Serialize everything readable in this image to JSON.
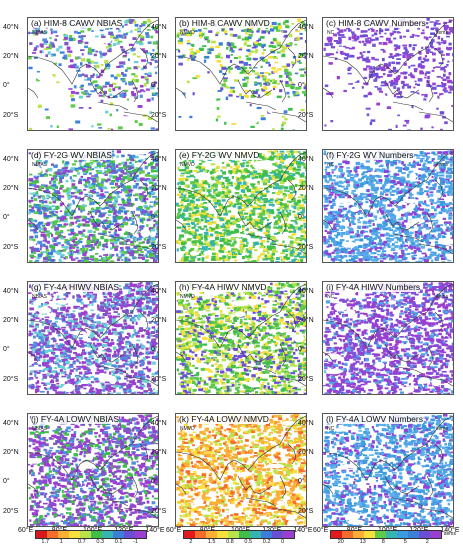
{
  "panels": [
    {
      "title": "(a) HIM-8 CAWV NBIAS",
      "label": "NBIAS"
    },
    {
      "title": "(b) HIM-8 CAWV NMVD",
      "label": "NMVD"
    },
    {
      "title": "(c) HIM-8 CAWV Numbers",
      "label": "NC",
      "unit": "items"
    },
    {
      "title": "(d) FY-2G WV NBIAS",
      "label": "NBIAS"
    },
    {
      "title": "(e) FY-2G WV NMVD",
      "label": "NMVD"
    },
    {
      "title": "(f) FY-2G WV Numbers",
      "label": "NC",
      "unit": "items"
    },
    {
      "title": "(g) FY-4A HIWV NBIAS",
      "label": "NBIAS"
    },
    {
      "title": "(h) FY-4A HIWV NMVD",
      "label": "NMVD"
    },
    {
      "title": "(i) FY-4A HIWV Numbers",
      "label": "NC",
      "unit": "items"
    },
    {
      "title": "(j) FY-4A LOWV NBIAS",
      "label": "NBIAS"
    },
    {
      "title": "(k) FY-4A LOWV NMVD",
      "label": "NMVD"
    },
    {
      "title": "(l) FY-4A LOWV Numbers",
      "label": "NC",
      "unit": "items"
    }
  ],
  "lat_ticks": [
    "40°N",
    "20°N",
    "0°",
    "20°S"
  ],
  "lon_ticks": [
    "60°E",
    "80°E",
    "100°E",
    "120°E",
    "140°E"
  ],
  "colorbars": [
    {
      "name": "nbias",
      "ticks": [
        "1.7",
        "1",
        "0.7",
        "0.3",
        "0.1",
        "-1"
      ],
      "colors": [
        "#d7191c",
        "#f46d2b",
        "#fdae34",
        "#f7e03b",
        "#b9e34a",
        "#3fbf4a",
        "#35b5b0",
        "#3b7fd8",
        "#6a4fd6",
        "#9b3fd1"
      ]
    },
    {
      "name": "nmvd",
      "ticks": [
        "2",
        "1.5",
        "0.8",
        "0.5",
        "0.2",
        "0"
      ],
      "colors": [
        "#e31a1c",
        "#f46d2b",
        "#fdae34",
        "#f7e03b",
        "#b9e34a",
        "#3fbf4a",
        "#35b5b0",
        "#3b7fd8",
        "#6a4fd6",
        "#9b3fd1"
      ]
    },
    {
      "name": "numbers",
      "ticks": [
        "20",
        "13",
        "8",
        "5",
        "2"
      ],
      "unit": "items",
      "colors": [
        "#e31a1c",
        "#f46d2b",
        "#fdae34",
        "#f7e03b",
        "#5fc94a",
        "#35b5b0",
        "#3b9be0",
        "#3b7fd8",
        "#6a4fd6",
        "#9b3fd1"
      ]
    }
  ]
}
